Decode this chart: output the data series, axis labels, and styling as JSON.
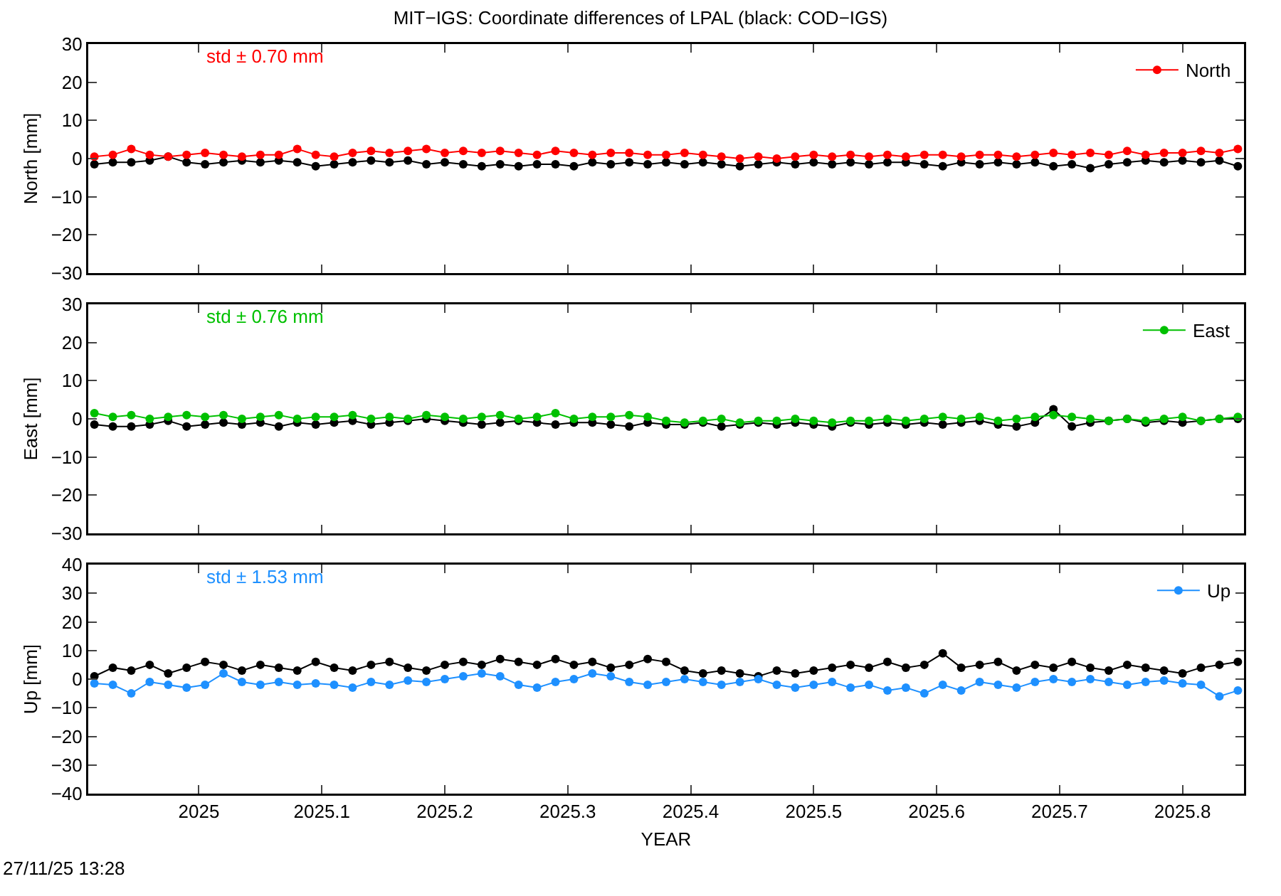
{
  "chart_data": [
    {
      "type": "line",
      "title": "MIT−IGS: Coordinate differences of LPAL (black: COD−IGS)",
      "ylabel": "North [mm]",
      "annotations": [
        "std ± 0.70 mm"
      ],
      "x": [
        2024.915,
        2024.93,
        2024.945,
        2024.96,
        2024.975,
        2024.99,
        2025.005,
        2025.02,
        2025.035,
        2025.05,
        2025.065,
        2025.08,
        2025.095,
        2025.11,
        2025.125,
        2025.14,
        2025.155,
        2025.17,
        2025.185,
        2025.2,
        2025.215,
        2025.23,
        2025.245,
        2025.26,
        2025.275,
        2025.29,
        2025.305,
        2025.32,
        2025.335,
        2025.35,
        2025.365,
        2025.38,
        2025.395,
        2025.41,
        2025.425,
        2025.44,
        2025.455,
        2025.47,
        2025.485,
        2025.5,
        2025.515,
        2025.53,
        2025.545,
        2025.56,
        2025.575,
        2025.59,
        2025.605,
        2025.62,
        2025.635,
        2025.65,
        2025.665,
        2025.68,
        2025.695,
        2025.71,
        2025.725,
        2025.74,
        2025.755,
        2025.77,
        2025.785,
        2025.8,
        2025.815,
        2025.83,
        2025.845
      ],
      "series": [
        {
          "name": null,
          "color": "#000000",
          "values": [
            -1.5,
            -1,
            -1,
            -0.5,
            0.5,
            -1,
            -1.5,
            -1,
            -0.5,
            -1,
            -0.5,
            -1,
            -2,
            -1.5,
            -1,
            -0.5,
            -1,
            -0.5,
            -1.5,
            -1,
            -1.5,
            -2,
            -1.5,
            -2,
            -1.5,
            -1.5,
            -2,
            -1,
            -1.5,
            -1,
            -1.5,
            -1,
            -1.5,
            -1,
            -1.5,
            -2,
            -1.5,
            -1,
            -1.5,
            -1,
            -1.5,
            -1,
            -1.5,
            -1,
            -1,
            -1.5,
            -2,
            -1,
            -1.5,
            -1,
            -1.5,
            -1,
            -2,
            -1.5,
            -2.5,
            -1.5,
            -1,
            -0.5,
            -1,
            -0.5,
            -1,
            -0.5,
            -2
          ]
        },
        {
          "name": "North",
          "color": "#ff0000",
          "values": [
            0.5,
            1,
            2.5,
            1,
            0.5,
            1,
            1.5,
            1,
            0.5,
            1,
            1,
            2.5,
            1,
            0.5,
            1.5,
            2,
            1.5,
            2,
            2.5,
            1.5,
            2,
            1.5,
            2,
            1.5,
            1,
            2,
            1.5,
            1,
            1.5,
            1.5,
            1,
            1,
            1.5,
            1,
            0.5,
            0,
            0.5,
            0,
            0.5,
            1,
            0.5,
            1,
            0.5,
            1,
            0.5,
            1,
            1,
            0.5,
            1,
            1,
            0.5,
            1,
            1.5,
            1,
            1.5,
            1,
            2,
            1,
            1.5,
            1.5,
            2,
            1.5,
            2.5
          ]
        }
      ],
      "xlim": [
        2024.91,
        2025.85
      ],
      "xticks": [
        2025,
        2025.1,
        2025.2,
        2025.3,
        2025.4,
        2025.5,
        2025.6,
        2025.7,
        2025.8
      ],
      "ylim": [
        -30,
        30
      ],
      "yticks": [
        -30,
        -20,
        -10,
        0,
        10,
        20,
        30
      ],
      "tick_labels": "y",
      "grid": false,
      "legend": "top right",
      "marker": "circle",
      "line_style": "solid"
    },
    {
      "type": "line",
      "ylabel": "East [mm]",
      "annotations": [
        "std ± 0.76 mm"
      ],
      "x": [
        2024.915,
        2024.93,
        2024.945,
        2024.96,
        2024.975,
        2024.99,
        2025.005,
        2025.02,
        2025.035,
        2025.05,
        2025.065,
        2025.08,
        2025.095,
        2025.11,
        2025.125,
        2025.14,
        2025.155,
        2025.17,
        2025.185,
        2025.2,
        2025.215,
        2025.23,
        2025.245,
        2025.26,
        2025.275,
        2025.29,
        2025.305,
        2025.32,
        2025.335,
        2025.35,
        2025.365,
        2025.38,
        2025.395,
        2025.41,
        2025.425,
        2025.44,
        2025.455,
        2025.47,
        2025.485,
        2025.5,
        2025.515,
        2025.53,
        2025.545,
        2025.56,
        2025.575,
        2025.59,
        2025.605,
        2025.62,
        2025.635,
        2025.65,
        2025.665,
        2025.68,
        2025.695,
        2025.71,
        2025.725,
        2025.74,
        2025.755,
        2025.77,
        2025.785,
        2025.8,
        2025.815,
        2025.83,
        2025.845
      ],
      "series": [
        {
          "name": null,
          "color": "#000000",
          "values": [
            -1.5,
            -2,
            -2,
            -1.5,
            -0.5,
            -2,
            -1.5,
            -1,
            -1.5,
            -1,
            -2,
            -1,
            -1.5,
            -1,
            -0.5,
            -1.5,
            -1,
            -0.5,
            0,
            -0.5,
            -1,
            -1.5,
            -1,
            -0.5,
            -1,
            -1.5,
            -1,
            -1,
            -1.5,
            -2,
            -1,
            -1.5,
            -1.5,
            -1,
            -2,
            -1.5,
            -1,
            -1.5,
            -1,
            -1.5,
            -2,
            -1,
            -1.5,
            -1,
            -1.5,
            -1,
            -1.5,
            -1,
            -0.5,
            -1.5,
            -2,
            -1,
            2.5,
            -2,
            -1,
            -0.5,
            0,
            -1,
            -0.5,
            -1,
            -0.5,
            0,
            0
          ]
        },
        {
          "name": "East",
          "color": "#00c000",
          "values": [
            1.5,
            0.5,
            1,
            0,
            0.5,
            1,
            0.5,
            1,
            0,
            0.5,
            1,
            0,
            0.5,
            0.5,
            1,
            0,
            0.5,
            0,
            1,
            0.5,
            0,
            0.5,
            1,
            0,
            0.5,
            1.5,
            0,
            0.5,
            0.5,
            1,
            0.5,
            -0.5,
            -1,
            -0.5,
            0,
            -1,
            -0.5,
            -0.5,
            0,
            -0.5,
            -1,
            -0.5,
            -0.5,
            0,
            -0.5,
            0,
            0.5,
            0,
            0.5,
            -0.5,
            0,
            0.5,
            1,
            0.5,
            0,
            -0.5,
            0,
            -0.5,
            0,
            0.5,
            -0.5,
            0,
            0.5
          ]
        }
      ],
      "xlim": [
        2024.91,
        2025.85
      ],
      "xticks": [
        2025,
        2025.1,
        2025.2,
        2025.3,
        2025.4,
        2025.5,
        2025.6,
        2025.7,
        2025.8
      ],
      "ylim": [
        -30,
        30
      ],
      "yticks": [
        -30,
        -20,
        -10,
        0,
        10,
        20,
        30
      ],
      "tick_labels": "y",
      "grid": false,
      "legend": "top right",
      "marker": "circle",
      "line_style": "solid"
    },
    {
      "type": "line",
      "xlabel": "YEAR",
      "ylabel": "Up [mm]",
      "annotations": [
        "std ± 1.53 mm",
        "27/11/25 13:28"
      ],
      "x": [
        2024.915,
        2024.93,
        2024.945,
        2024.96,
        2024.975,
        2024.99,
        2025.005,
        2025.02,
        2025.035,
        2025.05,
        2025.065,
        2025.08,
        2025.095,
        2025.11,
        2025.125,
        2025.14,
        2025.155,
        2025.17,
        2025.185,
        2025.2,
        2025.215,
        2025.23,
        2025.245,
        2025.26,
        2025.275,
        2025.29,
        2025.305,
        2025.32,
        2025.335,
        2025.35,
        2025.365,
        2025.38,
        2025.395,
        2025.41,
        2025.425,
        2025.44,
        2025.455,
        2025.47,
        2025.485,
        2025.5,
        2025.515,
        2025.53,
        2025.545,
        2025.56,
        2025.575,
        2025.59,
        2025.605,
        2025.62,
        2025.635,
        2025.65,
        2025.665,
        2025.68,
        2025.695,
        2025.71,
        2025.725,
        2025.74,
        2025.755,
        2025.77,
        2025.785,
        2025.8,
        2025.815,
        2025.83,
        2025.845
      ],
      "series": [
        {
          "name": null,
          "color": "#000000",
          "values": [
            1,
            4,
            3,
            5,
            2,
            4,
            6,
            5,
            3,
            5,
            4,
            3,
            6,
            4,
            3,
            5,
            6,
            4,
            3,
            5,
            6,
            5,
            7,
            6,
            5,
            7,
            5,
            6,
            4,
            5,
            7,
            6,
            3,
            2,
            3,
            2,
            1,
            3,
            2,
            3,
            4,
            5,
            4,
            6,
            4,
            5,
            9,
            4,
            5,
            6,
            3,
            5,
            4,
            6,
            4,
            3,
            5,
            4,
            3,
            2,
            4,
            5,
            6
          ]
        },
        {
          "name": "Up",
          "color": "#1e90ff",
          "values": [
            -1.5,
            -2,
            -5,
            -1,
            -2,
            -3,
            -2,
            2,
            -1,
            -2,
            -1,
            -2,
            -1.5,
            -2,
            -3,
            -1,
            -2,
            -0.5,
            -1,
            0,
            1,
            2,
            1,
            -2,
            -3,
            -1,
            0,
            2,
            1,
            -1,
            -2,
            -1,
            0,
            -1,
            -2,
            -1,
            0,
            -2,
            -3,
            -2,
            -1,
            -3,
            -2,
            -4,
            -3,
            -5,
            -2,
            -4,
            -1,
            -2,
            -3,
            -1,
            0,
            -1,
            0,
            -1,
            -2,
            -1,
            -0.5,
            -1.5,
            -2,
            -6,
            -4
          ]
        }
      ],
      "xlim": [
        2024.91,
        2025.85
      ],
      "xticks": [
        2025,
        2025.1,
        2025.2,
        2025.3,
        2025.4,
        2025.5,
        2025.6,
        2025.7,
        2025.8
      ],
      "ylim": [
        -40,
        40
      ],
      "yticks": [
        -40,
        -30,
        -20,
        -10,
        0,
        10,
        20,
        30,
        40
      ],
      "grid": false,
      "legend": "top right",
      "marker": "circle",
      "line_style": "solid"
    }
  ]
}
